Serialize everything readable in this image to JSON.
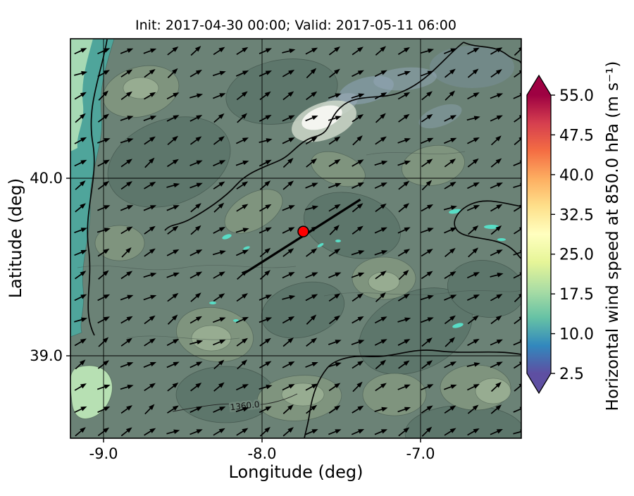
{
  "figure": {
    "title": "Init: 2017-04-30 00:00; Valid: 2017-05-11 06:00"
  },
  "chart_data": {
    "type": "heatmap",
    "subtype": "filled-contour-map-with-wind-quiver",
    "title": "Init: 2017-04-30 00:00; Valid: 2017-05-11 06:00",
    "xlabel": "Longitude (deg)",
    "ylabel": "Latitude (deg)",
    "xticks": [
      -9.0,
      -8.0,
      -7.0
    ],
    "xtick_labels": [
      "-9.0",
      "-8.0",
      "-7.0"
    ],
    "yticks": [
      40.0,
      39.0
    ],
    "ytick_labels": [
      "40.0",
      "39.0"
    ],
    "xlim": [
      -9.21,
      -6.36
    ],
    "ylim": [
      38.54,
      40.79
    ],
    "grid": true,
    "colorbar": {
      "label": "Horizontal wind speed at 850.0 hPa (m s⁻¹)",
      "tick_labels": [
        "55.0",
        "47.5",
        "40.0",
        "32.5",
        "25.0",
        "17.5",
        "10.0",
        "2.5"
      ],
      "ticks_top_to_bottom": [
        55.0,
        47.5,
        40.0,
        32.5,
        25.0,
        17.5,
        10.0,
        2.5
      ],
      "extend": "both",
      "colormap_stops_low_to_high": [
        "#5e4fa2",
        "#3288bd",
        "#66c2a5",
        "#abdda4",
        "#e6f598",
        "#ffffbf",
        "#fee08b",
        "#fdae61",
        "#f46d43",
        "#d53e4f",
        "#9e0142"
      ]
    },
    "field_summary": {
      "dominant_speed_range_ms": [
        10,
        17.5
      ],
      "offshore_band_speed_ms": [
        10,
        17.5
      ],
      "local_max_patch_speed_ms": [
        25,
        32.5
      ]
    },
    "quiver": {
      "description": "wind arrows pointing toward the north-east (south-westerly flow)",
      "arrow_color": "#000000"
    },
    "contour_label": "1360.0",
    "marker": {
      "lon": -7.74,
      "lat": 39.7,
      "color": "#ff0000"
    },
    "section_line": {
      "from": {
        "lon": -8.12,
        "lat": 39.46
      },
      "to": {
        "lon": -7.38,
        "lat": 39.88
      },
      "color": "#000000"
    }
  }
}
